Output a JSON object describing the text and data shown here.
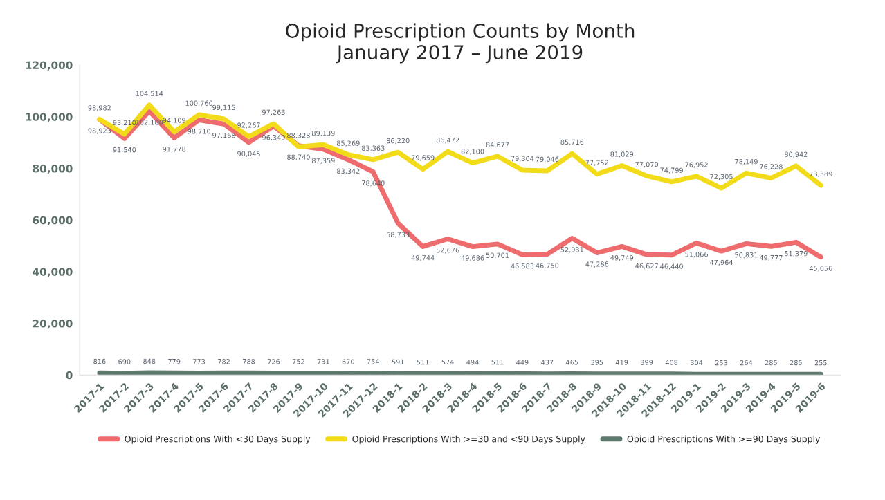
{
  "chart_data": {
    "type": "line",
    "title": "Opioid Prescription Counts by Month\nJanuary 2017 – June 2019",
    "categories": [
      "2017-1",
      "2017-2",
      "2017-3",
      "2017-4",
      "2017-5",
      "2017-6",
      "2017-7",
      "2017-8",
      "2017-9",
      "2017-10",
      "2017-11",
      "2017-12",
      "2018-1",
      "2018-2",
      "2018-3",
      "2018-4",
      "2018-5",
      "2018-6",
      "2018-7",
      "2018-8",
      "2018-9",
      "2018-10",
      "2018-11",
      "2018-12",
      "2019-1",
      "2019-2",
      "2019-3",
      "2019-4",
      "2019-5",
      "2019-6"
    ],
    "series": [
      {
        "name": "Opioid Prescriptions With <30 Days Supply",
        "color": "#ee6b6e",
        "values": [
          98923,
          91540,
          102180,
          91778,
          98710,
          97168,
          90045,
          96349,
          88740,
          87359,
          83342,
          78640,
          58733,
          49744,
          52676,
          49686,
          50701,
          46583,
          46750,
          52931,
          47286,
          49749,
          46627,
          46440,
          51066,
          47964,
          50831,
          49777,
          51379,
          45656
        ],
        "value_labels": [
          "98,923",
          "91,540",
          "102,180",
          "91,778",
          "98,710",
          "97,168",
          "90,045",
          "96,349",
          "88,740",
          "87,359",
          "83,342",
          "78,640",
          "58,733",
          "49,744",
          "52,676",
          "49,686",
          "50,701",
          "46,583",
          "46,750",
          "52,931",
          "47,286",
          "49,749",
          "46,627",
          "46,440",
          "51,066",
          "47,964",
          "50,831",
          "49,777",
          "51,379",
          "45,656"
        ]
      },
      {
        "name": "Opioid Prescriptions With >=30 and <90 Days Supply",
        "color": "#f2dc1a",
        "values": [
          98982,
          93210,
          104514,
          94109,
          100760,
          99115,
          92267,
          97263,
          88328,
          89139,
          85269,
          83363,
          86220,
          79659,
          86472,
          82100,
          84677,
          79304,
          79046,
          85716,
          77752,
          81029,
          77070,
          74799,
          76952,
          72305,
          78149,
          76228,
          80942,
          73389
        ],
        "value_labels": [
          "98,982",
          "93,210",
          "104,514",
          "94,109",
          "100,760",
          "99,115",
          "92,267",
          "97,263",
          "88,328",
          "89,139",
          "85,269",
          "83,363",
          "86,220",
          "79,659",
          "86,472",
          "82,100",
          "84,677",
          "79,304",
          "79,046",
          "85,716",
          "77,752",
          "81,029",
          "77,070",
          "74,799",
          "76,952",
          "72,305",
          "78,149",
          "76,228",
          "80,942",
          "73,389"
        ]
      },
      {
        "name": "Opioid Prescriptions With >=90 Days Supply",
        "color": "#5e7a6c",
        "values": [
          816,
          690,
          848,
          779,
          773,
          782,
          788,
          726,
          752,
          731,
          670,
          754,
          591,
          511,
          574,
          494,
          511,
          449,
          437,
          465,
          395,
          419,
          399,
          408,
          304,
          253,
          264,
          285,
          285,
          255
        ],
        "value_labels": [
          "816",
          "690",
          "848",
          "779",
          "773",
          "782",
          "788",
          "726",
          "752",
          "731",
          "670",
          "754",
          "591",
          "511",
          "574",
          "494",
          "511",
          "449",
          "437",
          "465",
          "395",
          "419",
          "399",
          "408",
          "304",
          "253",
          "264",
          "285",
          "285",
          "255"
        ]
      }
    ],
    "ylim": [
      0,
      120000
    ],
    "yticks": [
      {
        "value": 0,
        "label": "0"
      },
      {
        "value": 20000,
        "label": "20,000"
      },
      {
        "value": 40000,
        "label": "40,000"
      },
      {
        "value": 60000,
        "label": "60,000"
      },
      {
        "value": 80000,
        "label": "80,000"
      },
      {
        "value": 100000,
        "label": "100,000"
      },
      {
        "value": 120000,
        "label": "120,000"
      }
    ],
    "legend": "bottom",
    "grid": false,
    "marker": "none",
    "line_style": "solid"
  }
}
